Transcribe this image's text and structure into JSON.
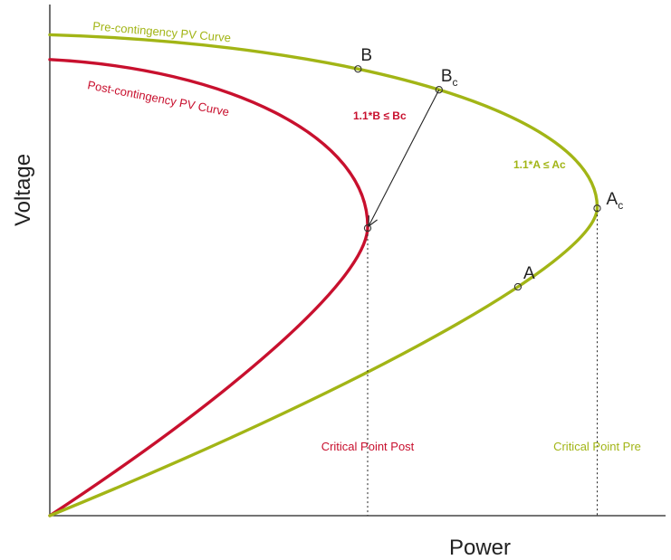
{
  "chart_data": {
    "type": "line",
    "title": "",
    "xlabel": "Power",
    "ylabel": "Voltage",
    "xticks": [],
    "yticks": [],
    "grid": false,
    "colors": {
      "pre": "#a2b516",
      "post": "#c8102e",
      "axis": "#222222",
      "text": "#222222"
    },
    "series": [
      {
        "key": "pre",
        "name": "Pre-contingency PV Curve",
        "nose_power": 0.62,
        "nose_voltage": 0.62,
        "start_voltage": 0.97
      },
      {
        "key": "post",
        "name": "Post-contingency PV Curve",
        "nose_power": 0.36,
        "nose_voltage": 0.58,
        "start_voltage": 0.92
      }
    ],
    "points": [
      {
        "id": "B",
        "label": "B",
        "sub": "",
        "series": "pre",
        "power": 0.35,
        "voltage": 0.88
      },
      {
        "id": "Bc",
        "label": "B",
        "sub": "c",
        "series": "pre",
        "power": 0.44,
        "voltage": 0.85
      },
      {
        "id": "A",
        "label": "A",
        "sub": "",
        "series": "pre",
        "power": 0.53,
        "voltage": 0.8
      },
      {
        "id": "Ac",
        "label": "A",
        "sub": "c",
        "series": "pre",
        "power": 0.62,
        "voltage": 0.62
      },
      {
        "id": "Post",
        "label": "",
        "sub": "",
        "series": "post",
        "power": 0.36,
        "voltage": 0.58
      }
    ],
    "arrow": {
      "from": "Bc",
      "to": "Post"
    },
    "critical_lines": [
      {
        "series": "post",
        "power": 0.36,
        "label": "Critical Point Post"
      },
      {
        "series": "pre",
        "power": 0.62,
        "label": "Critical Point Pre"
      }
    ],
    "annotations": [
      {
        "id": "b-rule",
        "text": "1.1*B ≤ Bc",
        "series": "post"
      },
      {
        "id": "a-rule",
        "text": "1.1*A ≤ Ac",
        "series": "pre"
      }
    ]
  }
}
